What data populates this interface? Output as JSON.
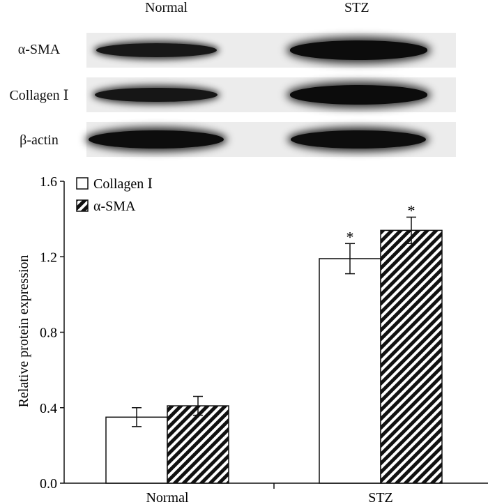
{
  "blot": {
    "lanes": [
      "Normal",
      "STZ"
    ],
    "rows": [
      {
        "label": "α-SMA",
        "intensity": [
          0.55,
          0.95
        ]
      },
      {
        "label": "Collagen Ⅰ",
        "intensity": [
          0.6,
          0.95
        ]
      },
      {
        "label": "β-actin",
        "intensity": [
          0.9,
          0.9
        ]
      }
    ]
  },
  "chart_data": {
    "type": "bar",
    "categories": [
      "Normal",
      "STZ"
    ],
    "series": [
      {
        "name": "Collagen Ⅰ",
        "values": [
          0.35,
          1.19
        ],
        "errors": [
          0.05,
          0.08
        ],
        "fill": "white",
        "significance": [
          "",
          "*"
        ]
      },
      {
        "name": "α-SMA",
        "values": [
          0.41,
          1.34
        ],
        "errors": [
          0.05,
          0.07
        ],
        "fill": "hatched",
        "significance": [
          "",
          "*"
        ]
      }
    ],
    "title": "",
    "xlabel": "",
    "ylabel": "Relative protein expression",
    "ylim": [
      0,
      1.6
    ],
    "yticks": [
      0.0,
      0.4,
      0.8,
      1.2,
      1.6
    ],
    "ytick_labels": [
      "0.0",
      "0.4",
      "0.8",
      "1.2",
      "1.6"
    ],
    "legend_position": "top-left",
    "grid": false
  }
}
